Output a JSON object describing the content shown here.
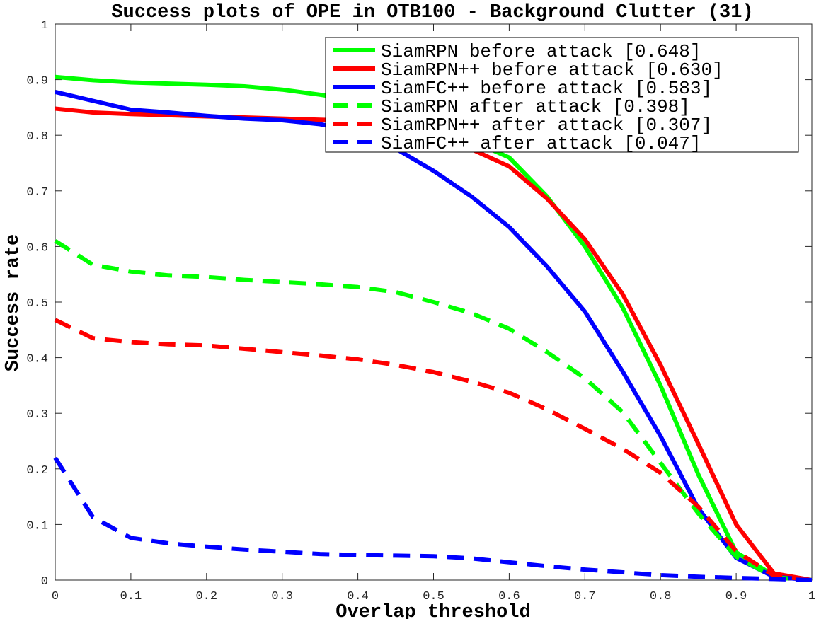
{
  "chart_data": {
    "type": "line",
    "title": "Success plots of OPE in OTB100 - Background Clutter (31)",
    "xlabel": "Overlap threshold",
    "ylabel": "Success rate",
    "xlim": [
      0,
      1
    ],
    "ylim": [
      0,
      1
    ],
    "xticks": [
      "0",
      "0.1",
      "0.2",
      "0.3",
      "0.4",
      "0.5",
      "0.6",
      "0.7",
      "0.8",
      "0.9",
      "1"
    ],
    "yticks": [
      "0",
      "0.1",
      "0.2",
      "0.3",
      "0.4",
      "0.5",
      "0.6",
      "0.7",
      "0.8",
      "0.9",
      "1"
    ],
    "grid": false,
    "legend_position": "top-right",
    "x": [
      0,
      0.05,
      0.1,
      0.15,
      0.2,
      0.25,
      0.3,
      0.35,
      0.4,
      0.45,
      0.5,
      0.55,
      0.6,
      0.65,
      0.7,
      0.75,
      0.8,
      0.85,
      0.9,
      0.95,
      1.0
    ],
    "series": [
      {
        "name": "SiamRPN before attack [0.648]",
        "color": "#00ff00",
        "dashed": false,
        "values": [
          0.905,
          0.899,
          0.895,
          0.893,
          0.891,
          0.888,
          0.882,
          0.873,
          0.862,
          0.84,
          0.81,
          0.79,
          0.76,
          0.69,
          0.6,
          0.49,
          0.35,
          0.19,
          0.05,
          0.008,
          0.0
        ]
      },
      {
        "name": "SiamRPN++ before attack [0.630]",
        "color": "#ff0000",
        "dashed": false,
        "values": [
          0.848,
          0.841,
          0.838,
          0.836,
          0.834,
          0.832,
          0.83,
          0.828,
          0.826,
          0.815,
          0.8,
          0.775,
          0.744,
          0.686,
          0.613,
          0.514,
          0.387,
          0.245,
          0.1,
          0.012,
          0.0
        ]
      },
      {
        "name": "SiamFC++ before attack [0.583]",
        "color": "#0000ff",
        "dashed": false,
        "values": [
          0.878,
          0.862,
          0.846,
          0.841,
          0.835,
          0.83,
          0.827,
          0.82,
          0.806,
          0.776,
          0.736,
          0.69,
          0.635,
          0.564,
          0.483,
          0.375,
          0.259,
          0.129,
          0.04,
          0.006,
          0.0
        ]
      },
      {
        "name": "SiamRPN after attack [0.398]",
        "color": "#00ff00",
        "dashed": true,
        "values": [
          0.61,
          0.567,
          0.555,
          0.548,
          0.545,
          0.54,
          0.536,
          0.532,
          0.527,
          0.518,
          0.5,
          0.48,
          0.452,
          0.41,
          0.363,
          0.302,
          0.211,
          0.12,
          0.042,
          0.005,
          0.0
        ]
      },
      {
        "name": "SiamRPN++ after attack [0.307]",
        "color": "#ff0000",
        "dashed": true,
        "values": [
          0.468,
          0.435,
          0.428,
          0.424,
          0.422,
          0.416,
          0.41,
          0.404,
          0.397,
          0.387,
          0.374,
          0.357,
          0.337,
          0.307,
          0.272,
          0.236,
          0.193,
          0.132,
          0.052,
          0.008,
          0.0
        ]
      },
      {
        "name": "SiamFC++ after attack [0.047]",
        "color": "#0000ff",
        "dashed": true,
        "values": [
          0.22,
          0.113,
          0.076,
          0.066,
          0.06,
          0.055,
          0.051,
          0.047,
          0.045,
          0.044,
          0.043,
          0.039,
          0.032,
          0.025,
          0.019,
          0.014,
          0.009,
          0.006,
          0.004,
          0.002,
          0.0
        ]
      }
    ]
  }
}
